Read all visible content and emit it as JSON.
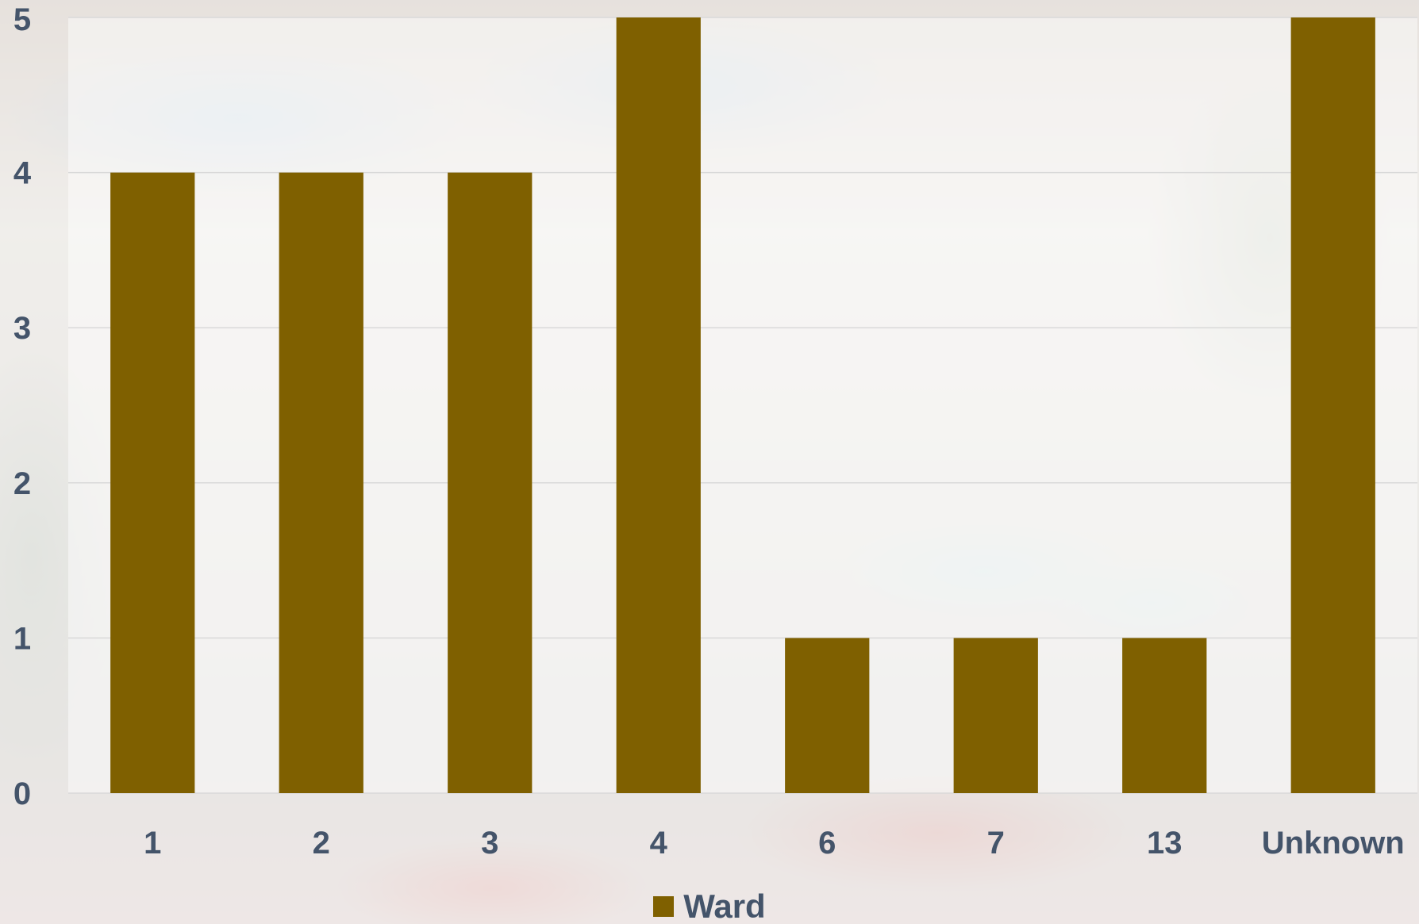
{
  "chart_data": {
    "type": "bar",
    "categories": [
      "1",
      "2",
      "3",
      "4",
      "6",
      "7",
      "13",
      "Unknown"
    ],
    "series": [
      {
        "name": "Ward",
        "values": [
          4,
          4,
          4,
          5,
          1,
          1,
          1,
          5
        ]
      }
    ],
    "title": "",
    "xlabel": "",
    "ylabel": "",
    "ylim": [
      0,
      5
    ],
    "yticks": [
      "0",
      "1",
      "2",
      "3",
      "4",
      "5"
    ],
    "grid": true,
    "legend_position": "bottom",
    "colors": {
      "bar": "#7f6000",
      "tick_text": "#44546a",
      "gridline": "#d9d9d9"
    }
  }
}
